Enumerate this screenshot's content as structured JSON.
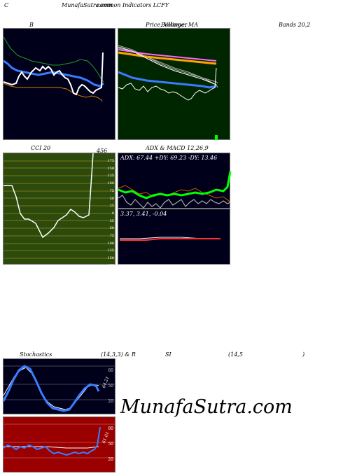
{
  "header": {
    "corner_label": "C",
    "site_title": "MunafaSutra.com",
    "subtitle": "common  Indicators LCFY",
    "b_label": "B",
    "price_label": "Price,  Volume,  MA",
    "price_label_overlap": "Bollinger",
    "bands_label": "Bands 20,2"
  },
  "cci": {
    "title": "CCI 20",
    "value": "456",
    "scale": [
      "175",
      "150",
      "125",
      "100",
      "75",
      "50",
      "25",
      "0",
      "25",
      "50",
      "75",
      "100",
      "125",
      "150",
      "175"
    ]
  },
  "adx": {
    "title": "ADX  & MACD 12,26,9",
    "readout": "ADX: 67.44  +DY: 69.23 -DY: 13.46"
  },
  "macd": {
    "readout": "3.37,  3.41,  -0.04"
  },
  "stochastics": {
    "title": "Stochastics",
    "params": "(14,3,3) & R",
    "rsi": "SI",
    "rsi_params": "(14,5",
    "close_paren": ")",
    "value": "64.21",
    "scale": [
      "80",
      "50",
      "20"
    ]
  },
  "rsi": {
    "value": "61.01",
    "scale": [
      "80",
      "50",
      "20"
    ]
  },
  "watermark": "MunafaSutra.com",
  "colors": {
    "dark_panel": "#00001a",
    "green_panel": "#002600",
    "cci_panel": "#2c4a0c",
    "rsi_panel": "#9a0000",
    "blue_line": "#3a7bff",
    "orange_line": "#d97f00",
    "green_line": "#00ff00"
  }
}
